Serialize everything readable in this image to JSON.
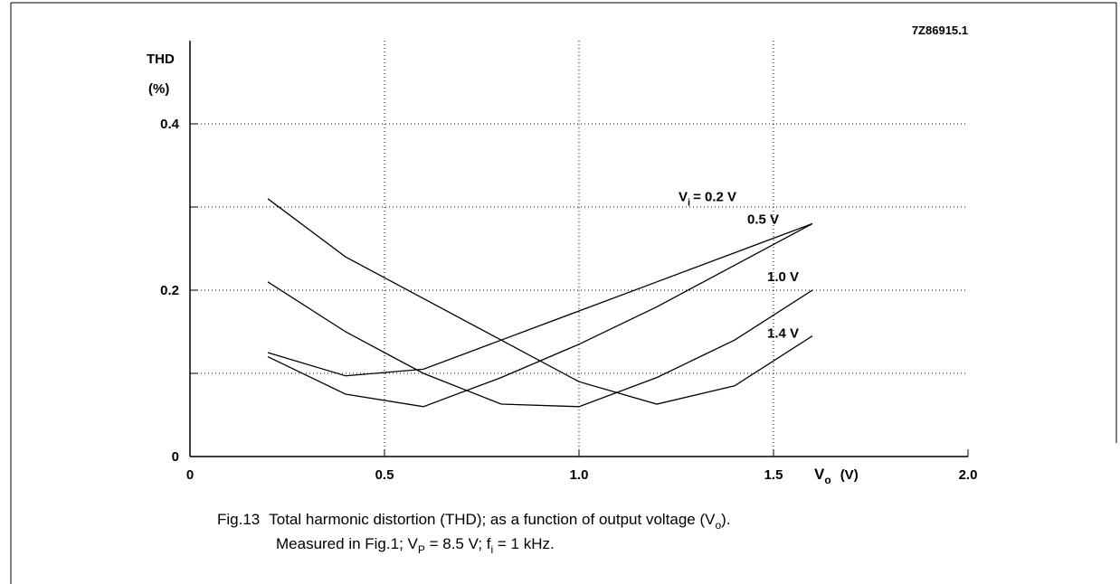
{
  "chart_data": {
    "type": "line",
    "code": "7Z86915.1",
    "ylabel": [
      "THD",
      "(%)"
    ],
    "xlabel": {
      "symbol": "V",
      "sub": "o",
      "unit": "(V)"
    },
    "x": [
      0.2,
      0.4,
      0.6,
      0.8,
      1.0,
      1.2,
      1.4,
      1.6
    ],
    "series_label_prefix": {
      "symbol": "V",
      "sub": "i",
      "eq": "= "
    },
    "series": [
      {
        "name": "0.2 V",
        "color": "#000000",
        "values": [
          0.125,
          0.097,
          0.105,
          0.14,
          0.175,
          0.21,
          0.245,
          0.28
        ]
      },
      {
        "name": "0.5 V",
        "color": "#000000",
        "values": [
          0.12,
          0.075,
          0.06,
          0.095,
          0.135,
          0.18,
          0.23,
          0.28
        ]
      },
      {
        "name": "1.0 V",
        "color": "#000000",
        "values": [
          0.21,
          0.15,
          0.1,
          0.063,
          0.06,
          0.095,
          0.14,
          0.2
        ]
      },
      {
        "name": "1.4 V",
        "color": "#000000",
        "values": [
          0.31,
          0.24,
          0.19,
          0.14,
          0.09,
          0.063,
          0.085,
          0.145
        ]
      }
    ],
    "xlim": [
      0,
      2
    ],
    "xticks": [
      0,
      0.5,
      {
        "value": 1,
        "label": "1.0"
      },
      1.5,
      {
        "value": 2,
        "label": "2.0"
      }
    ],
    "ylim": [
      0,
      0.5
    ],
    "yticks": [
      0,
      0.2,
      0.4
    ],
    "minor_yticks": [
      0.1,
      0.3
    ],
    "grid": true,
    "caption": {
      "fig": "Fig.13",
      "line1": {
        "text": "Total harmonic distortion (THD); as a function of output voltage (V",
        "sub": "o",
        "end": ")."
      },
      "line2": {
        "a": "Measured in Fig.1; V",
        "asub": "P",
        "b": " = 8.5 V; f",
        "bsub": "i",
        "c": " = 1 kHz."
      }
    }
  }
}
